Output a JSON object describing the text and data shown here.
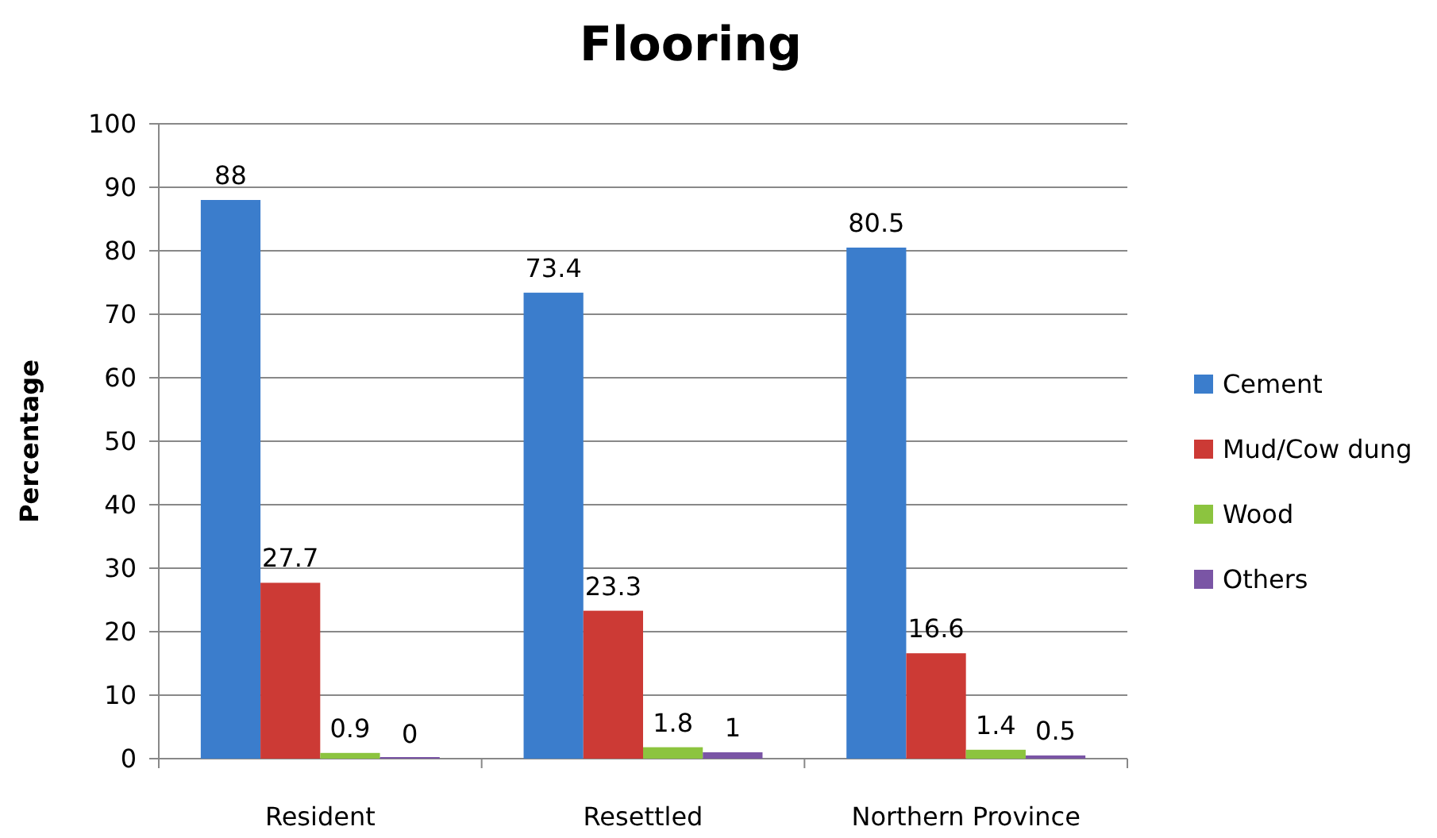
{
  "chart_data": {
    "type": "bar",
    "title": "Flooring",
    "ylabel": "Percentage",
    "categories": [
      "Resident",
      "Resettled",
      "Northern Province"
    ],
    "series": [
      {
        "name": "Cement",
        "color": "#3b7dcc",
        "values": [
          88,
          73.4,
          80.5
        ]
      },
      {
        "name": "Mud/Cow dung",
        "color": "#cc3a35",
        "values": [
          27.7,
          23.3,
          16.6
        ]
      },
      {
        "name": "Wood",
        "color": "#8cc43f",
        "values": [
          0.9,
          1.8,
          1.4
        ]
      },
      {
        "name": "Others",
        "color": "#7a55a5",
        "values": [
          0,
          1,
          0.5
        ]
      }
    ],
    "ylim": [
      0,
      100
    ],
    "yticks": [
      0,
      10,
      20,
      30,
      40,
      50,
      60,
      70,
      80,
      90,
      100
    ],
    "grid": "y",
    "legend": "right",
    "data_labels": true
  }
}
